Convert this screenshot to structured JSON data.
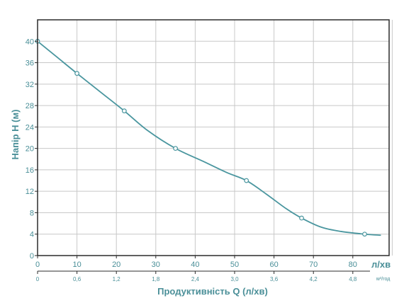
{
  "chart_data": {
    "type": "line",
    "xlabel": "Продуктивність Q (л/хв)",
    "ylabel": "Напір Н (м)",
    "x_unit_primary": "л/хв",
    "x_unit_secondary": "м³/год",
    "xlim": [
      0,
      90
    ],
    "ylim": [
      0,
      44
    ],
    "grid": true,
    "x_ticks": [
      "0",
      "10",
      "20",
      "30",
      "40",
      "50",
      "60",
      "70",
      "80"
    ],
    "y_ticks": [
      "0",
      "4",
      "8",
      "12",
      "16",
      "20",
      "24",
      "28",
      "32",
      "36",
      "40"
    ],
    "x2_ticks": [
      "0",
      "0,6",
      "1,2",
      "1,8",
      "2,4",
      "3,0",
      "3,6",
      "4,2",
      "4,8"
    ],
    "curve": [
      [
        0,
        40
      ],
      [
        5,
        37
      ],
      [
        10,
        34
      ],
      [
        16,
        30.5
      ],
      [
        22,
        27
      ],
      [
        28,
        23.3
      ],
      [
        35,
        20
      ],
      [
        42,
        17.6
      ],
      [
        48,
        15.5
      ],
      [
        53,
        14
      ],
      [
        58,
        11.5
      ],
      [
        63,
        8.8
      ],
      [
        67,
        7
      ],
      [
        72,
        5.3
      ],
      [
        77,
        4.5
      ],
      [
        83,
        4
      ],
      [
        87,
        3.8
      ]
    ],
    "markers": [
      [
        0,
        40
      ],
      [
        10,
        34
      ],
      [
        22,
        27
      ],
      [
        35,
        20
      ],
      [
        53,
        14
      ],
      [
        67,
        7
      ],
      [
        83,
        4
      ]
    ],
    "colors": {
      "line": "#4a969f",
      "axis": "#2b2b2b",
      "grid": "#c8c8c8",
      "text": "#4a8f98"
    }
  }
}
